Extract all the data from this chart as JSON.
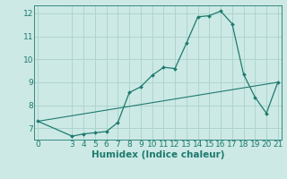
{
  "title": "",
  "xlabel": "Humidex (Indice chaleur)",
  "ylabel": "",
  "background_color": "#cce9e5",
  "grid_color": "#aed4ce",
  "line_color": "#1e7a6e",
  "curve1_x": [
    0,
    3,
    4,
    5,
    6,
    7,
    8,
    9,
    10,
    11,
    12,
    13,
    14,
    15,
    16,
    17,
    18,
    19,
    20,
    21
  ],
  "curve1_y": [
    7.3,
    6.65,
    6.75,
    6.8,
    6.85,
    7.25,
    8.55,
    8.8,
    9.3,
    9.65,
    9.6,
    10.7,
    11.85,
    11.9,
    12.1,
    11.55,
    9.35,
    8.35,
    7.65,
    9.0
  ],
  "curve2_x": [
    0,
    21
  ],
  "curve2_y": [
    7.3,
    9.0
  ],
  "ylim": [
    6.5,
    12.35
  ],
  "xlim": [
    -0.3,
    21.3
  ],
  "yticks": [
    7,
    8,
    9,
    10,
    11,
    12
  ],
  "xticks": [
    0,
    3,
    4,
    5,
    6,
    7,
    8,
    9,
    10,
    11,
    12,
    13,
    14,
    15,
    16,
    17,
    18,
    19,
    20,
    21
  ],
  "xlabel_fontsize": 7.5,
  "tick_fontsize": 6.5
}
